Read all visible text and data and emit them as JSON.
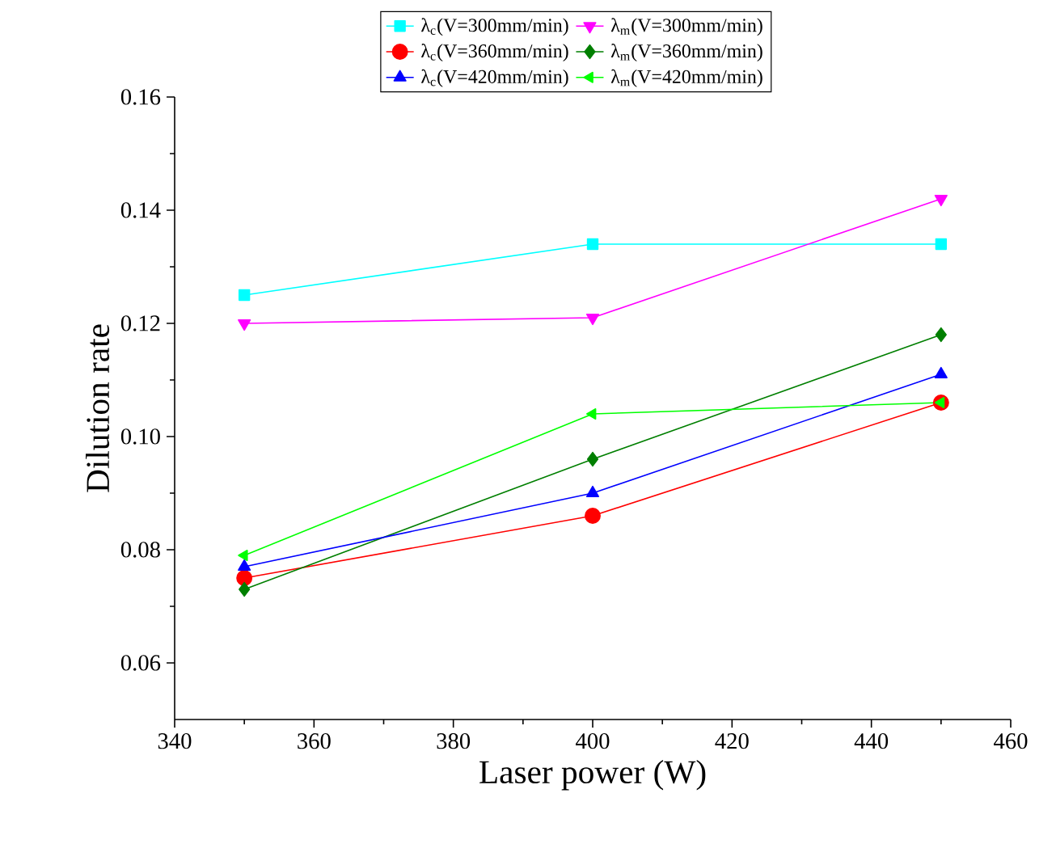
{
  "chart_data": {
    "type": "line",
    "xlabel": "Laser power (W)",
    "ylabel": "Dilution rate",
    "x": [
      350,
      400,
      450
    ],
    "xlim": [
      340,
      460
    ],
    "xticks": [
      340,
      360,
      380,
      400,
      420,
      440,
      460
    ],
    "ylim": [
      0.05,
      0.16
    ],
    "yticks": [
      0.06,
      0.08,
      {
        "value": 0.1,
        "label": "0.10"
      },
      0.12,
      0.14,
      0.16
    ],
    "legend": "top",
    "grid": false,
    "line_style": "solid",
    "series": [
      {
        "name": "λ$_{c}$(V=300mm/min)",
        "color": "#00ffff",
        "marker": "square",
        "values": [
          0.125,
          0.134,
          0.134
        ]
      },
      {
        "name": "λ$_{m}$(V=300mm/min)",
        "color": "#ff00ff",
        "marker": "triangle-down",
        "values": [
          0.12,
          0.121,
          0.142
        ]
      },
      {
        "name": "λ$_{c}$(V=360mm/min)",
        "color": "#ff0000",
        "marker": "circle",
        "values": [
          0.075,
          0.086,
          0.106
        ]
      },
      {
        "name": "λ$_{m}$(V=360mm/min)",
        "color": "#007f00",
        "marker": "diamond",
        "values": [
          0.073,
          0.096,
          0.118
        ]
      },
      {
        "name": "λ$_{c}$(V=420mm/min)",
        "color": "#0000ff",
        "marker": "triangle",
        "values": [
          0.077,
          0.09,
          0.111
        ]
      },
      {
        "name": "λ$_{m}$(V=420mm/min)",
        "color": "#00ff00",
        "marker": "triangle-left",
        "values": [
          0.079,
          0.104,
          0.106
        ]
      }
    ]
  }
}
